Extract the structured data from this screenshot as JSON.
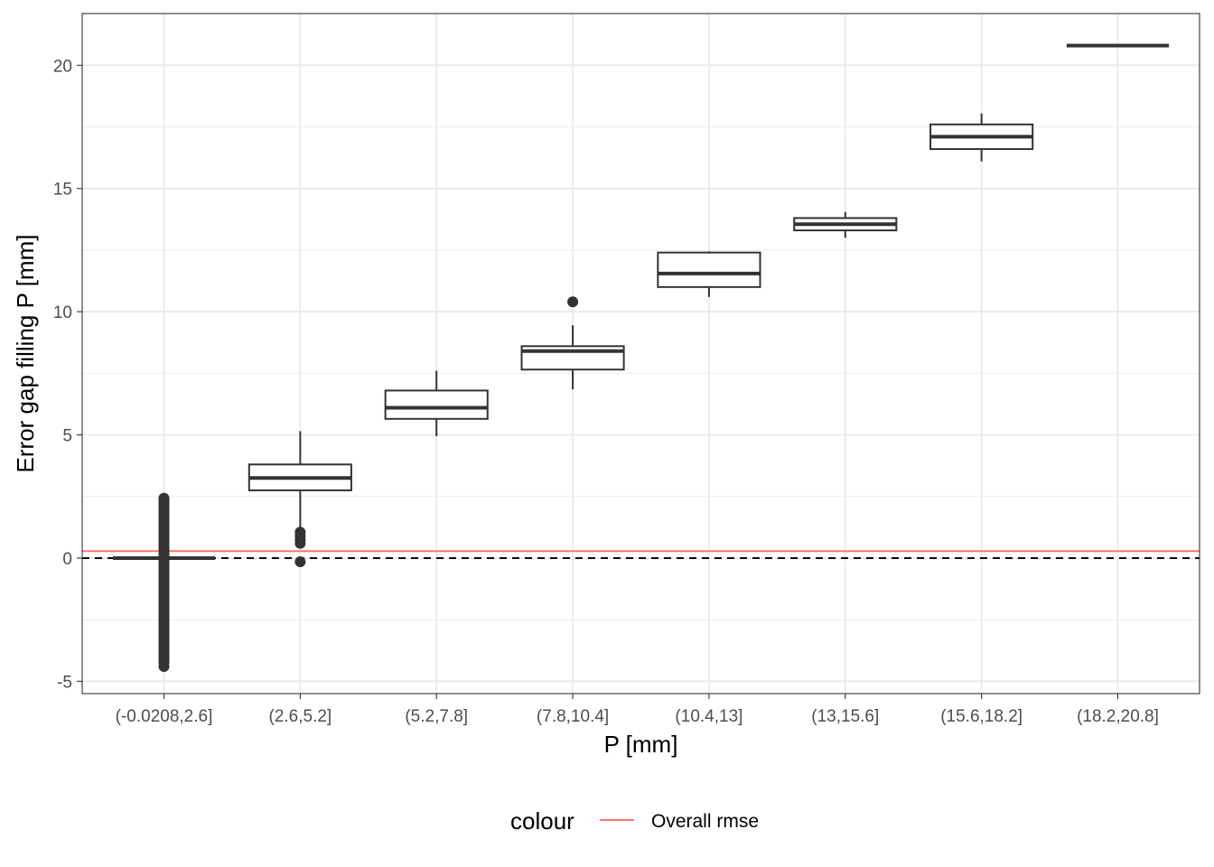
{
  "chart_data": {
    "type": "boxplot",
    "xlabel": "P [mm]",
    "ylabel": "Error gap filling P [mm]",
    "ylim": [
      -5.5,
      22.1
    ],
    "yticks": [
      -5,
      0,
      5,
      10,
      15,
      20
    ],
    "ytick_labels": [
      "-5",
      "0",
      "5",
      "10",
      "15",
      "20"
    ],
    "grid": true,
    "categories": [
      "(-0.0208,2.6]",
      "(2.6,5.2]",
      "(5.2,7.8]",
      "(7.8,10.4]",
      "(10.4,13]",
      "(13,15.6]",
      "(15.6,18.2]",
      "(18.2,20.8]"
    ],
    "boxes": [
      {
        "category": "(-0.0208,2.6]",
        "min": 0,
        "q1": 0,
        "median": 0,
        "q3": 0,
        "max": 0,
        "outliers_range": [
          -4.45,
          2.65
        ],
        "outliers_discrete": [
          -4.4,
          -4.2,
          -3.6,
          -3.3,
          -3.0,
          -2.7
        ]
      },
      {
        "category": "(2.6,5.2]",
        "min": 1.25,
        "q1": 2.75,
        "median": 3.25,
        "q3": 3.8,
        "max": 5.15,
        "outliers": [
          1.05,
          0.9,
          0.75,
          0.6,
          -0.15
        ]
      },
      {
        "category": "(5.2,7.8]",
        "min": 4.95,
        "q1": 5.65,
        "median": 6.1,
        "q3": 6.8,
        "max": 7.6,
        "outliers": []
      },
      {
        "category": "(7.8,10.4]",
        "min": 6.85,
        "q1": 7.65,
        "median": 8.4,
        "q3": 8.6,
        "max": 9.45,
        "outliers": [
          10.4
        ]
      },
      {
        "category": "(10.4,13]",
        "min": 10.6,
        "q1": 11.0,
        "median": 11.55,
        "q3": 12.4,
        "max": 12.45,
        "outliers": []
      },
      {
        "category": "(13,15.6]",
        "min": 13.0,
        "q1": 13.3,
        "median": 13.55,
        "q3": 13.8,
        "max": 14.05,
        "outliers": []
      },
      {
        "category": "(15.6,18.2]",
        "min": 16.1,
        "q1": 16.6,
        "median": 17.1,
        "q3": 17.6,
        "max": 18.05,
        "outliers": []
      },
      {
        "category": "(18.2,20.8]",
        "min": 20.8,
        "q1": 20.8,
        "median": 20.8,
        "q3": 20.8,
        "max": 20.8,
        "outliers": []
      }
    ],
    "reference_lines": [
      {
        "name": "Overall rmse",
        "y": 0.28,
        "color": "#f8766d",
        "style": "solid"
      },
      {
        "y": 0,
        "color": "#000000",
        "style": "dashed"
      }
    ],
    "legend": {
      "title": "colour",
      "position": "bottom",
      "entries": [
        {
          "label": "Overall rmse",
          "color": "#f8766d"
        }
      ]
    }
  }
}
